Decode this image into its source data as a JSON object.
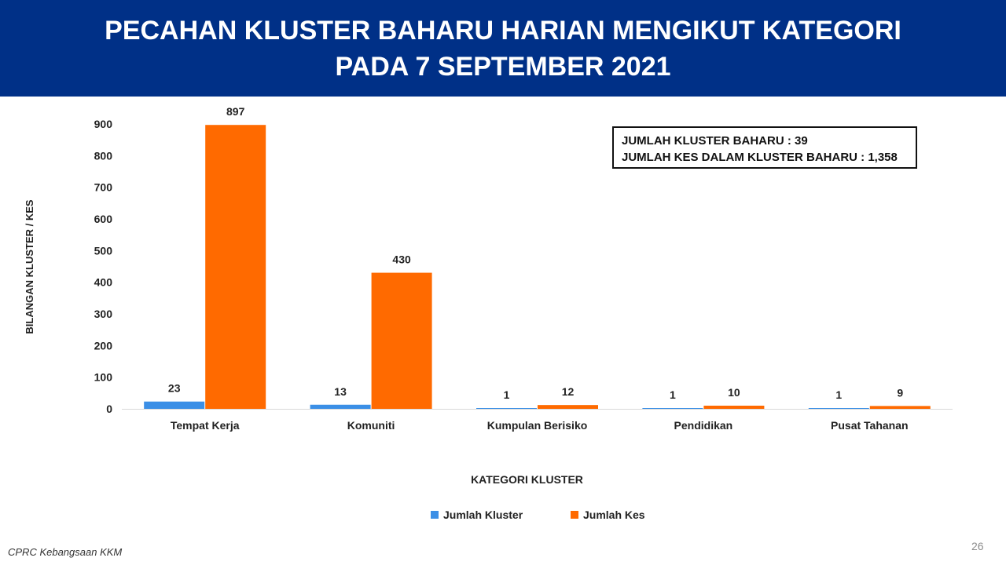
{
  "header": {
    "title_line1": "PECAHAN KLUSTER BAHARU HARIAN MENGIKUT KATEGORI",
    "title_line2": "PADA 7 SEPTEMBER 2021",
    "bg_color": "#003087"
  },
  "info_box": {
    "line1": "JUMLAH KLUSTER BAHARU : 39",
    "line2": "JUMLAH KES DALAM KLUSTER BAHARU : 1,358"
  },
  "footer": {
    "source": "CPRC Kebangsaan KKM",
    "page_number": "26"
  },
  "chart_data": {
    "type": "bar",
    "categories": [
      "Tempat Kerja",
      "Komuniti",
      "Kumpulan Berisiko",
      "Pendidikan",
      "Pusat Tahanan"
    ],
    "series": [
      {
        "name": "Jumlah Kluster",
        "color": "#3b8fe6",
        "values": [
          23,
          13,
          1,
          1,
          1
        ]
      },
      {
        "name": "Jumlah Kes",
        "color": "#ff6a00",
        "values": [
          897,
          430,
          12,
          10,
          9
        ]
      }
    ],
    "xlabel": "KATEGORI KLUSTER",
    "ylabel": "BILANGAN KLUSTER / KES",
    "ylim": [
      0,
      900
    ],
    "yticks": [
      0,
      100,
      200,
      300,
      400,
      500,
      600,
      700,
      800,
      900
    ],
    "grid": false,
    "legend": "bottom-center"
  }
}
